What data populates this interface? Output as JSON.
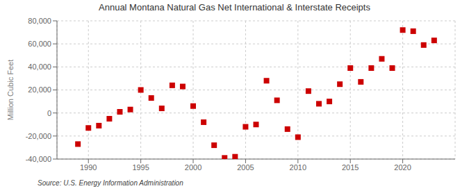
{
  "chart_data": {
    "type": "scatter",
    "title": "Annual Montana Natural Gas Net International & Interstate Receipts",
    "ylabel": "Million Cubic Feet",
    "annotations": [
      "Source: U.S. Energy Information Administration"
    ],
    "color": "#cc0000",
    "marker": "square",
    "x": [
      1989,
      1990,
      1991,
      1992,
      1993,
      1994,
      1995,
      1996,
      1997,
      1998,
      1999,
      2000,
      2001,
      2002,
      2003,
      2004,
      2005,
      2006,
      2007,
      2008,
      2009,
      2010,
      2011,
      2012,
      2013,
      2014,
      2015,
      2016,
      2017,
      2018,
      2019,
      2020,
      2021,
      2022,
      2023
    ],
    "values": [
      -27000,
      -13000,
      -11000,
      -5000,
      1000,
      3000,
      20000,
      13000,
      4000,
      24000,
      23000,
      6000,
      -8000,
      -28000,
      -39000,
      -38000,
      -12000,
      -10000,
      28000,
      11000,
      -14000,
      -21000,
      19000,
      8000,
      10000,
      25000,
      39000,
      27000,
      39000,
      47000,
      39000,
      72000,
      71000,
      59000,
      63000
    ],
    "xlim": [
      1987,
      2025
    ],
    "ylim": [
      -40000,
      80000
    ],
    "xticks": [
      1990,
      1995,
      2000,
      2005,
      2010,
      2015,
      2020
    ],
    "yticks": [
      {
        "value": -40000,
        "label": "-40,000"
      },
      {
        "value": -20000,
        "label": "-20,000"
      },
      {
        "value": 0,
        "label": "0"
      },
      {
        "value": 20000,
        "label": "20,000"
      },
      {
        "value": 40000,
        "label": "40,000"
      },
      {
        "value": 60000,
        "label": "60,000"
      },
      {
        "value": 80000,
        "label": "80,000"
      }
    ],
    "grid": true
  }
}
